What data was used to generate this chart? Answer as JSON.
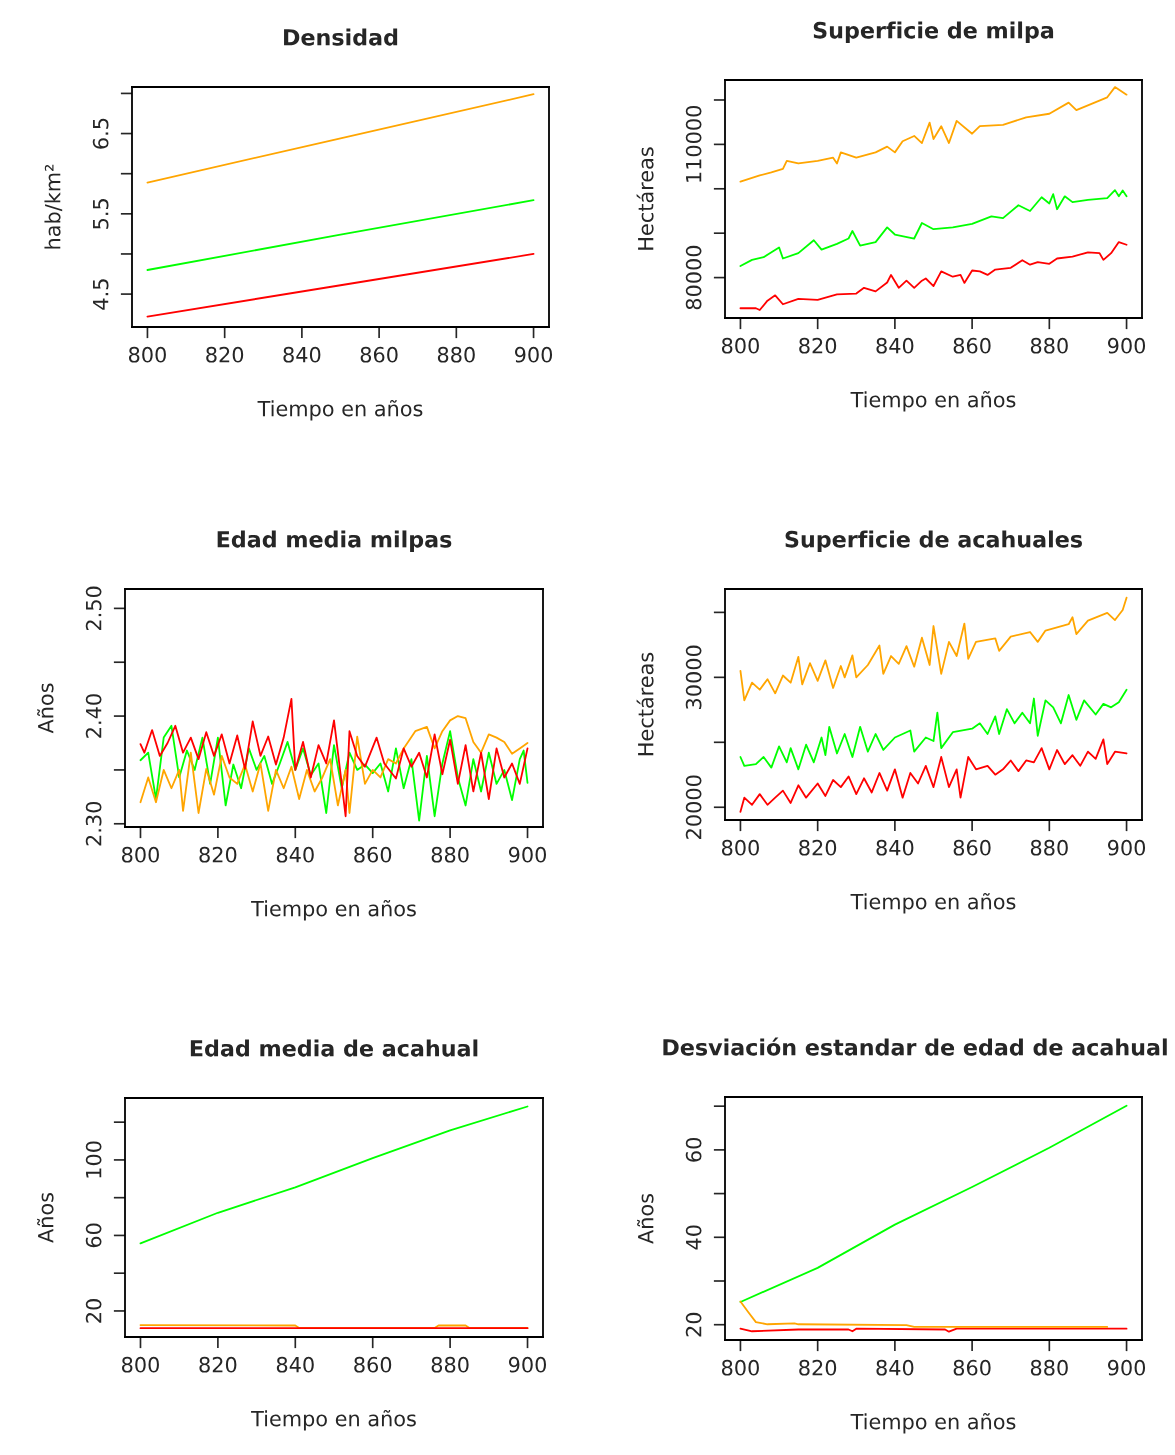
{
  "chart_data": [
    {
      "type": "line",
      "title": "Densidad",
      "xlabel": "Tiempo en años",
      "ylabel": "hab/km²",
      "xlim": [
        796,
        904
      ],
      "xticks": [
        800,
        820,
        840,
        860,
        880,
        900
      ],
      "ylim": [
        4.09,
        7.08
      ],
      "yticks": [
        4.5,
        {
          "value": 5.0,
          "label": null
        },
        5.5,
        {
          "value": 6.0,
          "label": null
        },
        6.5,
        {
          "value": 7.0,
          "label": null
        }
      ],
      "series": [
        {
          "color": "#ffa500",
          "x": [
            800,
            850,
            900
          ],
          "values": [
            5.89,
            6.44,
            6.99
          ]
        },
        {
          "color": "#00ff00",
          "x": [
            800,
            850,
            900
          ],
          "values": [
            4.8,
            5.24,
            5.67
          ]
        },
        {
          "color": "#ff0000",
          "x": [
            800,
            850,
            900
          ],
          "values": [
            4.22,
            4.61,
            5.0
          ]
        }
      ]
    },
    {
      "type": "line",
      "title": "Superficie de milpa",
      "xlabel": "Tiempo en años",
      "ylabel": "Hectáreas",
      "xlim": [
        796,
        904
      ],
      "xticks": [
        800,
        820,
        840,
        860,
        880,
        900
      ],
      "ylim": [
        70900,
        124500
      ],
      "yticks": [
        80000,
        {
          "value": 90000,
          "label": null
        },
        {
          "value": 100000,
          "label": null
        },
        110000,
        {
          "value": 120000,
          "label": null
        }
      ],
      "series": [
        {
          "color": "#ffa500",
          "x": [
            800,
            805,
            808,
            811,
            812,
            815,
            820,
            824,
            825,
            826,
            830,
            835,
            838,
            840,
            842,
            845,
            847,
            849,
            850,
            852,
            854,
            856,
            860,
            862,
            868,
            874,
            880,
            885,
            887,
            895,
            897,
            900
          ],
          "values": [
            101600,
            103000,
            103700,
            104500,
            106300,
            105700,
            106300,
            107000,
            105700,
            108200,
            107000,
            108200,
            109500,
            108200,
            110700,
            111900,
            110300,
            114900,
            111200,
            114100,
            110300,
            115300,
            112400,
            114100,
            114400,
            116100,
            116900,
            119400,
            117700,
            120600,
            122900,
            121200
          ]
        },
        {
          "color": "#00ff00",
          "x": [
            800,
            803,
            806,
            810,
            811,
            815,
            819,
            821,
            825,
            828,
            829,
            831,
            835,
            838,
            840,
            845,
            847,
            850,
            855,
            860,
            865,
            868,
            872,
            875,
            878,
            880,
            881,
            882,
            884,
            886,
            890,
            895,
            897,
            898,
            899,
            900
          ],
          "values": [
            82600,
            84000,
            84600,
            86800,
            84300,
            85500,
            88400,
            86300,
            87600,
            88800,
            90500,
            87200,
            88000,
            91300,
            89700,
            88800,
            92300,
            90900,
            91300,
            92100,
            93800,
            93400,
            96300,
            95000,
            98100,
            96700,
            98800,
            95400,
            98300,
            97000,
            97500,
            97900,
            99700,
            98300,
            99600,
            98300
          ]
        },
        {
          "color": "#ff0000",
          "x": [
            800,
            804,
            805,
            807,
            809,
            811,
            815,
            820,
            825,
            830,
            832,
            835,
            838,
            839,
            841,
            843,
            845,
            847,
            848,
            850,
            852,
            855,
            857,
            858,
            860,
            862,
            864,
            866,
            870,
            873,
            875,
            877,
            880,
            882,
            886,
            890,
            893,
            894,
            896,
            898,
            900
          ],
          "values": [
            73100,
            73100,
            72700,
            74800,
            76000,
            74000,
            75200,
            75000,
            76200,
            76400,
            77700,
            76900,
            78900,
            80600,
            77700,
            79300,
            77700,
            79300,
            79800,
            78100,
            81400,
            80200,
            80600,
            78800,
            81600,
            81400,
            80600,
            81800,
            82200,
            83900,
            82900,
            83500,
            83100,
            84300,
            84700,
            85700,
            85500,
            84000,
            85500,
            88000,
            87400
          ]
        }
      ]
    },
    {
      "type": "line",
      "title": "Edad media milpas",
      "xlabel": "Tiempo en años",
      "ylabel": "Años",
      "xlim": [
        796,
        904
      ],
      "xticks": [
        800,
        820,
        840,
        860,
        880,
        900
      ],
      "ylim": [
        2.297,
        2.518
      ],
      "yticks": [
        {
          "value": 2.3,
          "label": "2.30"
        },
        {
          "value": 2.35,
          "label": null
        },
        {
          "value": 2.4,
          "label": "2.40"
        },
        {
          "value": 2.45,
          "label": null
        },
        {
          "value": 2.5,
          "label": "2.50"
        }
      ],
      "series": [
        {
          "color": "#00ff00",
          "x": [
            800,
            802,
            804,
            806,
            808,
            810,
            812,
            814,
            816,
            818,
            820,
            822,
            824,
            826,
            828,
            830,
            832,
            834,
            836,
            838,
            840,
            842,
            844,
            846,
            848,
            850,
            852,
            854,
            856,
            858,
            860,
            862,
            864,
            866,
            868,
            870,
            872,
            874,
            876,
            878,
            880,
            882,
            884,
            886,
            888,
            890,
            892,
            894,
            896,
            898,
            899,
            900
          ],
          "values": [
            2.359,
            2.366,
            2.323,
            2.38,
            2.391,
            2.343,
            2.368,
            2.35,
            2.38,
            2.337,
            2.38,
            2.317,
            2.355,
            2.333,
            2.37,
            2.35,
            2.363,
            2.337,
            2.356,
            2.376,
            2.35,
            2.37,
            2.345,
            2.356,
            2.31,
            2.373,
            2.333,
            2.366,
            2.35,
            2.355,
            2.347,
            2.356,
            2.33,
            2.37,
            2.333,
            2.36,
            2.303,
            2.363,
            2.307,
            2.356,
            2.386,
            2.343,
            2.317,
            2.36,
            2.33,
            2.366,
            2.337,
            2.35,
            2.322,
            2.36,
            2.368,
            2.338
          ]
        },
        {
          "color": "#ffa500",
          "x": [
            800,
            802,
            804,
            806,
            808,
            810,
            811,
            813,
            815,
            817,
            819,
            821,
            823,
            825,
            827,
            829,
            831,
            833,
            835,
            837,
            839,
            841,
            843,
            845,
            847,
            849,
            851,
            853,
            854,
            856,
            858,
            860,
            862,
            864,
            866,
            868,
            871,
            874,
            876,
            878,
            880,
            882,
            884,
            886,
            888,
            890,
            892,
            894,
            896,
            898,
            900
          ],
          "values": [
            2.32,
            2.343,
            2.32,
            2.35,
            2.333,
            2.35,
            2.312,
            2.366,
            2.31,
            2.351,
            2.327,
            2.363,
            2.343,
            2.337,
            2.355,
            2.33,
            2.356,
            2.312,
            2.35,
            2.333,
            2.353,
            2.323,
            2.35,
            2.33,
            2.343,
            2.36,
            2.317,
            2.35,
            2.31,
            2.381,
            2.337,
            2.35,
            2.343,
            2.36,
            2.356,
            2.37,
            2.386,
            2.39,
            2.37,
            2.386,
            2.396,
            2.4,
            2.398,
            2.376,
            2.366,
            2.383,
            2.38,
            2.376,
            2.365,
            2.37,
            2.375
          ]
        },
        {
          "color": "#ff0000",
          "x": [
            800,
            801,
            803,
            805,
            807,
            809,
            811,
            813,
            815,
            817,
            819,
            821,
            823,
            825,
            827,
            829,
            831,
            833,
            835,
            837,
            839,
            840,
            842,
            844,
            846,
            848,
            850,
            852,
            853,
            854,
            856,
            858,
            861,
            863,
            866,
            868,
            870,
            872,
            874,
            876,
            878,
            880,
            882,
            884,
            886,
            888,
            890,
            892,
            894,
            896,
            898,
            900
          ],
          "values": [
            2.374,
            2.366,
            2.387,
            2.363,
            2.375,
            2.391,
            2.366,
            2.38,
            2.36,
            2.385,
            2.363,
            2.383,
            2.356,
            2.382,
            2.351,
            2.395,
            2.363,
            2.381,
            2.355,
            2.38,
            2.416,
            2.35,
            2.376,
            2.343,
            2.373,
            2.356,
            2.396,
            2.337,
            2.307,
            2.386,
            2.363,
            2.353,
            2.38,
            2.356,
            2.342,
            2.37,
            2.353,
            2.366,
            2.343,
            2.383,
            2.346,
            2.378,
            2.337,
            2.373,
            2.33,
            2.366,
            2.323,
            2.37,
            2.343,
            2.356,
            2.337,
            2.37
          ]
        }
      ]
    },
    {
      "type": "line",
      "title": "Superficie de acahuales",
      "xlabel": "Tiempo en años",
      "ylabel": "Hectáreas",
      "xlim": [
        796,
        904
      ],
      "xticks": [
        800,
        820,
        840,
        860,
        880,
        900
      ],
      "ylim": [
        19020,
        36800
      ],
      "yticks": [
        20000,
        {
          "value": 25000,
          "label": null
        },
        30000,
        {
          "value": 35000,
          "label": null
        }
      ],
      "series": [
        {
          "color": "#ffa500",
          "x": [
            800,
            801,
            803,
            805,
            807,
            809,
            811,
            813,
            815,
            816,
            818,
            820,
            822,
            824,
            826,
            827,
            829,
            830,
            833,
            836,
            837,
            839,
            841,
            843,
            845,
            847,
            849,
            850,
            852,
            854,
            856,
            858,
            859,
            861,
            866,
            867,
            870,
            875,
            877,
            879,
            885,
            886,
            887,
            890,
            895,
            897,
            899,
            900
          ],
          "values": [
            30490,
            28230,
            29590,
            29050,
            29860,
            28770,
            30140,
            29590,
            31580,
            29460,
            31090,
            29730,
            31310,
            29180,
            30870,
            30000,
            31690,
            30000,
            30950,
            32450,
            30270,
            31640,
            31040,
            32400,
            30820,
            33050,
            30950,
            33950,
            30270,
            32730,
            31640,
            34140,
            31420,
            32730,
            33000,
            32040,
            33130,
            33490,
            32730,
            33600,
            34090,
            34630,
            33330,
            34360,
            34960,
            34410,
            35180,
            36130
          ]
        },
        {
          "color": "#00ff00",
          "x": [
            800,
            801,
            804,
            806,
            808,
            810,
            812,
            813,
            815,
            817,
            819,
            821,
            822,
            823,
            825,
            827,
            829,
            831,
            833,
            835,
            837,
            840,
            844,
            845,
            848,
            850,
            851,
            852,
            855,
            860,
            862,
            864,
            866,
            867,
            869,
            871,
            873,
            875,
            876,
            877,
            879,
            881,
            883,
            885,
            887,
            889,
            892,
            894,
            896,
            898,
            900
          ],
          "values": [
            23870,
            23190,
            23320,
            23870,
            23050,
            24690,
            23460,
            24550,
            22920,
            24820,
            23460,
            25370,
            24010,
            26190,
            24140,
            25640,
            23870,
            26190,
            24280,
            25640,
            24410,
            25370,
            25910,
            24280,
            25370,
            25100,
            27280,
            24550,
            25780,
            26050,
            26460,
            25640,
            27000,
            25640,
            27550,
            26460,
            27280,
            26460,
            28370,
            25500,
            28230,
            27690,
            26460,
            28640,
            26730,
            28230,
            27140,
            27960,
            27690,
            28090,
            29050
          ]
        },
        {
          "color": "#ff0000",
          "x": [
            800,
            801,
            803,
            805,
            807,
            809,
            811,
            813,
            815,
            817,
            820,
            822,
            824,
            826,
            828,
            830,
            832,
            834,
            836,
            838,
            840,
            842,
            844,
            846,
            848,
            850,
            852,
            854,
            856,
            857,
            859,
            861,
            864,
            866,
            868,
            870,
            872,
            874,
            876,
            878,
            880,
            882,
            884,
            886,
            888,
            890,
            892,
            894,
            895,
            897,
            900
          ],
          "values": [
            19650,
            20740,
            20190,
            21010,
            20190,
            20740,
            21280,
            20330,
            21690,
            20740,
            21830,
            20870,
            22100,
            21550,
            22370,
            21010,
            22230,
            21140,
            22640,
            21280,
            22920,
            20740,
            22640,
            21830,
            23190,
            21550,
            23870,
            21550,
            22920,
            20740,
            23870,
            22920,
            23190,
            22510,
            22920,
            23600,
            22780,
            23600,
            23460,
            24550,
            22920,
            24410,
            23320,
            24010,
            23190,
            24280,
            23730,
            25230,
            23320,
            24280,
            24140
          ]
        }
      ]
    },
    {
      "type": "line",
      "title": "Edad media de acahual",
      "xlabel": "Tiempo en años",
      "ylabel": "Años",
      "xlim": [
        796,
        904
      ],
      "xticks": [
        800,
        820,
        840,
        860,
        880,
        900
      ],
      "ylim": [
        6.2,
        132.8
      ],
      "yticks": [
        20,
        {
          "value": 40,
          "label": null
        },
        60,
        {
          "value": 80,
          "label": null
        },
        100,
        {
          "value": 120,
          "label": null
        }
      ],
      "series": [
        {
          "color": "#00ff00",
          "x": [
            800,
            820,
            840,
            860,
            880,
            900
          ],
          "values": [
            55.8,
            72,
            85.5,
            101,
            115.7,
            128.3
          ]
        },
        {
          "color": "#ffa500",
          "x": [
            800,
            840,
            841,
            876,
            877,
            884,
            885,
            900
          ],
          "values": [
            12.5,
            12.3,
            11,
            11,
            12.3,
            12.3,
            11,
            11
          ]
        },
        {
          "color": "#ff0000",
          "x": [
            800,
            900
          ],
          "values": [
            10.9,
            10.9
          ]
        }
      ]
    },
    {
      "type": "line",
      "title": "Desviación estandar de edad de acahual",
      "xlabel": "Tiempo en años",
      "ylabel": "Años",
      "xlim": [
        796,
        904
      ],
      "xticks": [
        800,
        820,
        840,
        860,
        880,
        900
      ],
      "ylim": [
        16.5,
        72.1
      ],
      "yticks": [
        20,
        {
          "value": 30,
          "label": null
        },
        40,
        {
          "value": 50,
          "label": null
        },
        60,
        {
          "value": 70,
          "label": null
        }
      ],
      "series": [
        {
          "color": "#00ff00",
          "x": [
            800,
            820,
            840,
            860,
            880,
            900
          ],
          "values": [
            25.2,
            33,
            42.9,
            51.5,
            60.5,
            70.1
          ]
        },
        {
          "color": "#ff0000",
          "x": [
            800,
            803,
            815,
            828,
            829,
            830,
            853,
            854,
            856,
            900
          ],
          "values": [
            19.1,
            18.5,
            18.9,
            18.9,
            18.5,
            19.1,
            18.9,
            18.4,
            19.1,
            19.1
          ]
        },
        {
          "color": "#ffa500",
          "x": [
            800,
            802,
            804,
            807,
            814,
            815,
            843,
            845,
            895
          ],
          "values": [
            25.3,
            22.9,
            20.6,
            20.1,
            20.3,
            20.1,
            19.9,
            19.5,
            19.5
          ]
        }
      ]
    }
  ]
}
